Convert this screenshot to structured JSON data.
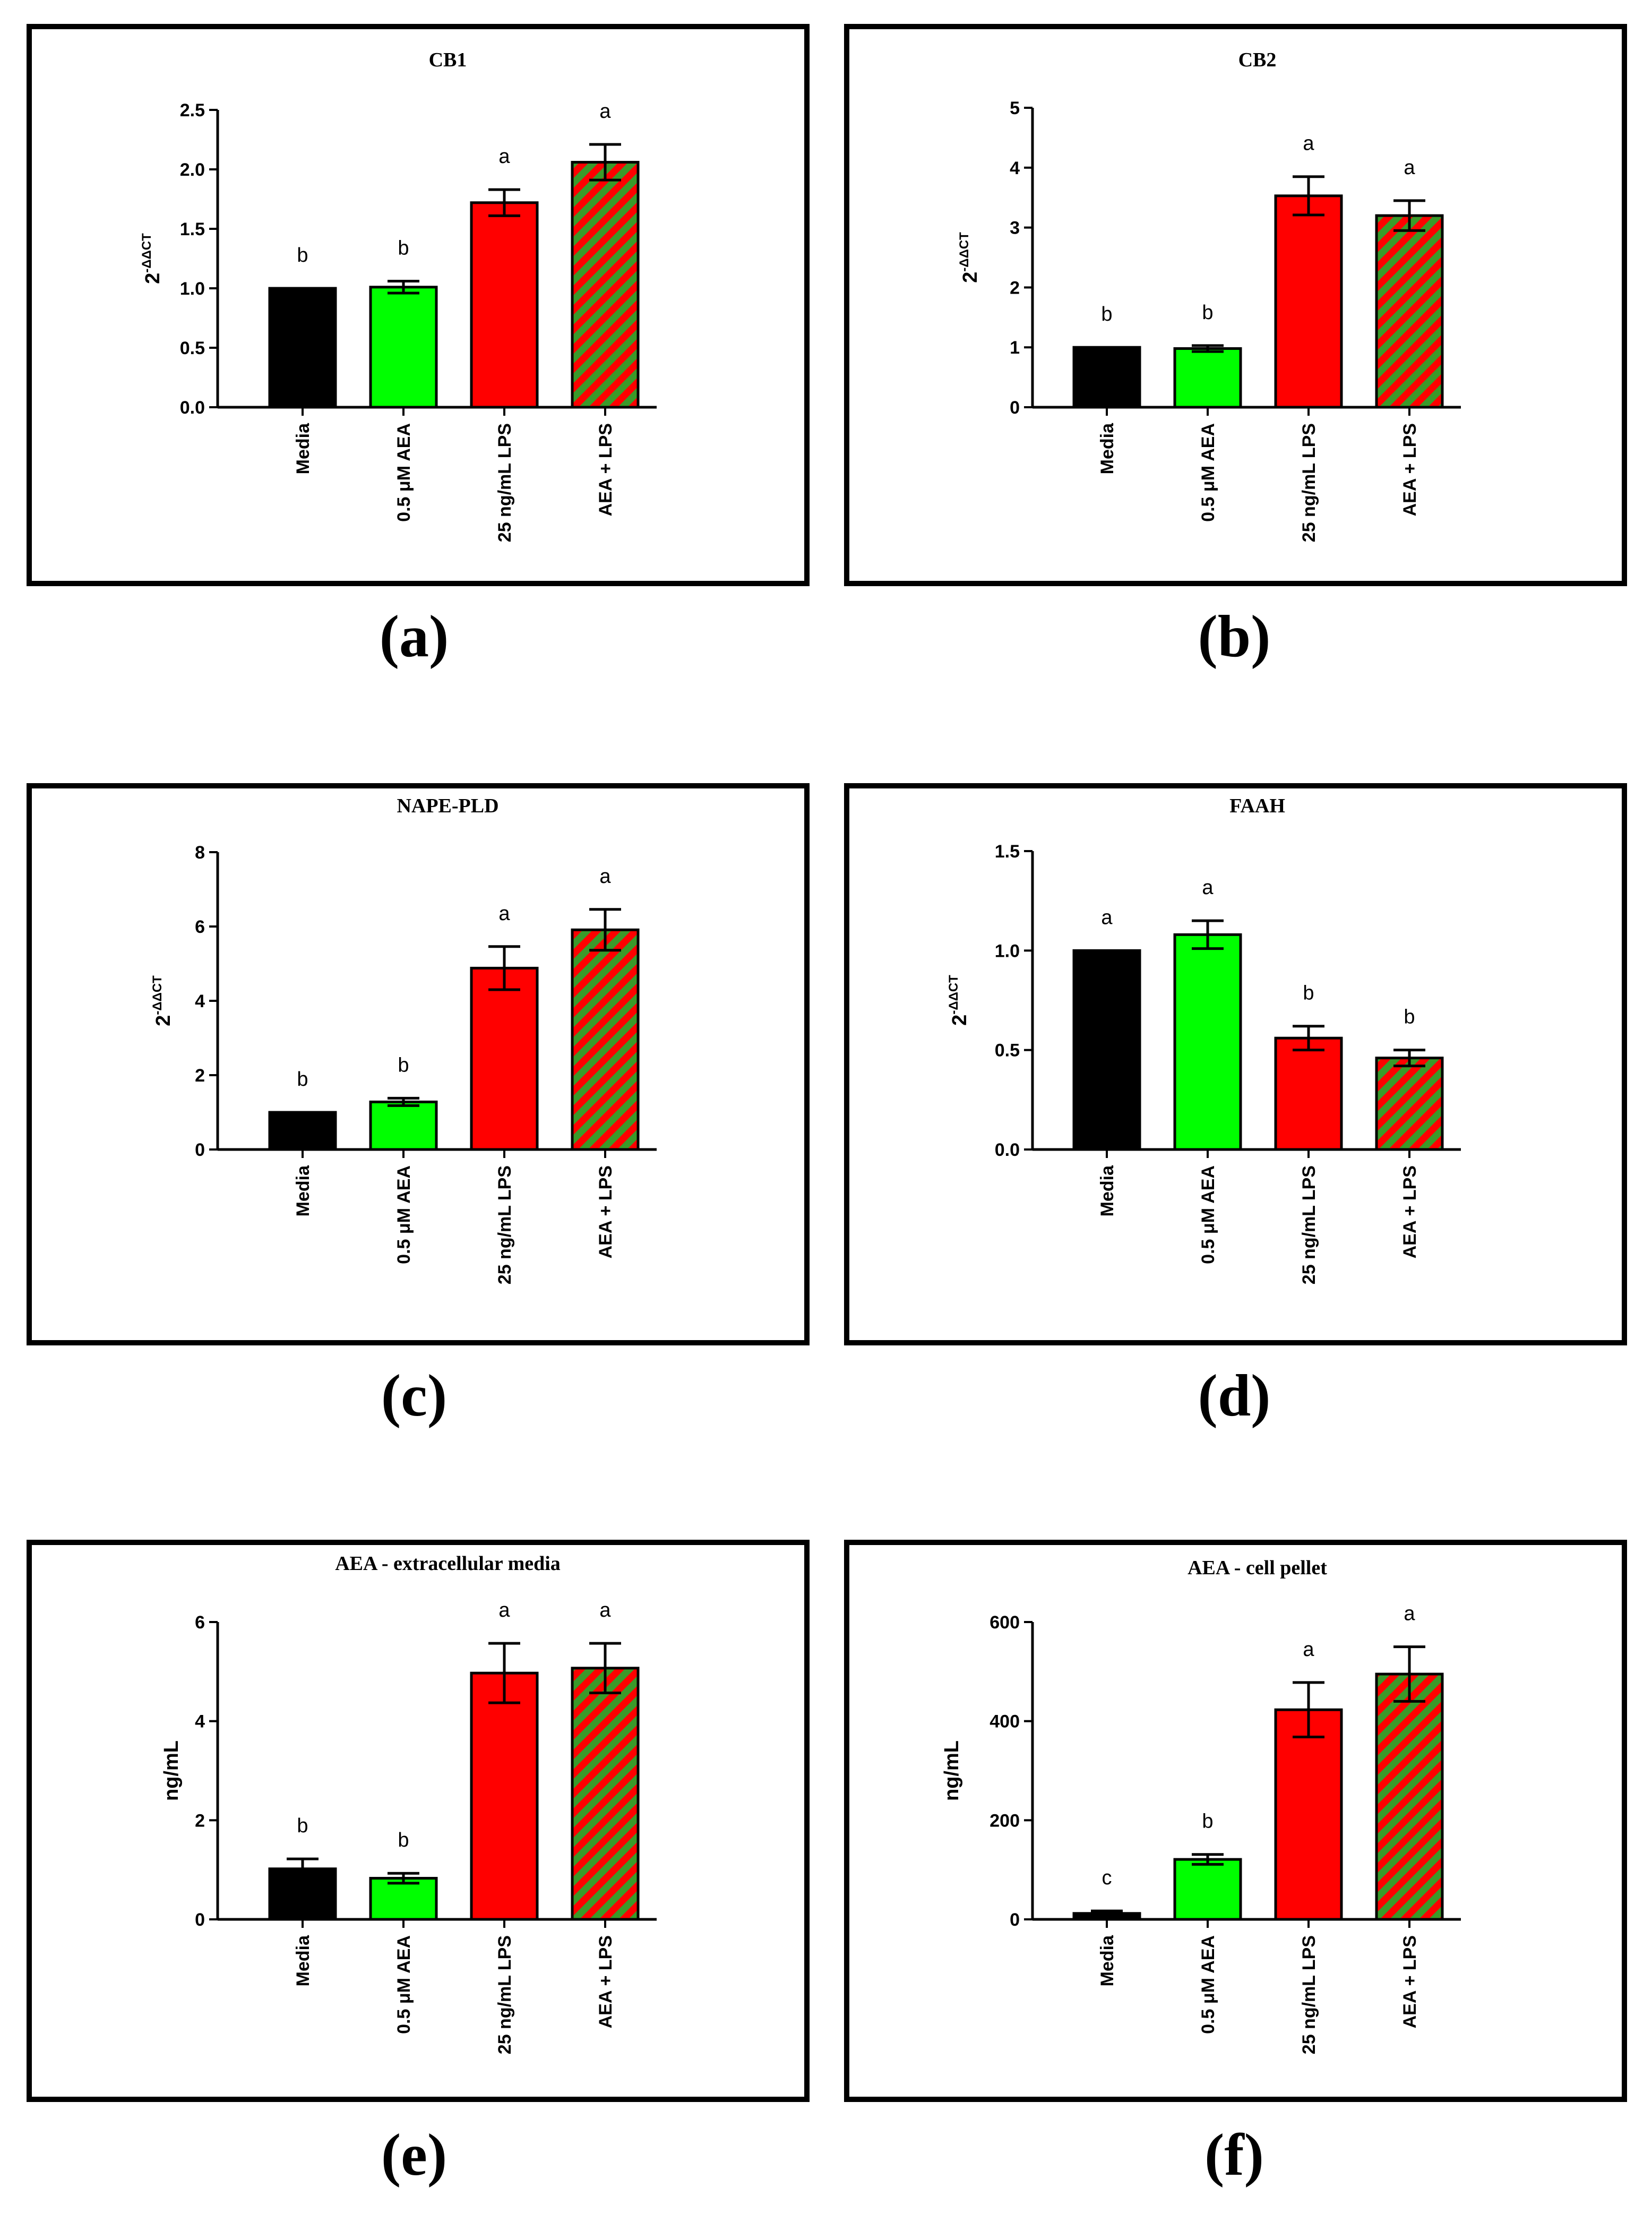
{
  "colors": {
    "media": "#000000",
    "aea": "#00ff00",
    "lps": "#ff0000",
    "combo_stripe_a": "#ff0000",
    "combo_stripe_b": "#3a9a2a"
  },
  "categories": [
    "Media",
    "0.5 μM AEA",
    "25 ng/mL LPS",
    "AEA + LPS"
  ],
  "panel_letters": [
    "(a)",
    "(b)",
    "(c)",
    "(d)",
    "(e)",
    "(f)"
  ],
  "chart_data": [
    {
      "type": "bar",
      "title": "CB1",
      "ylabel": {
        "base": "2",
        "sup": "-ΔΔCT"
      },
      "ylim": [
        0,
        2.5
      ],
      "ticks": [
        "0.0",
        "0.5",
        "1.0",
        "1.5",
        "2.0",
        "2.5"
      ],
      "tick_values": [
        0,
        0.5,
        1.0,
        1.5,
        2.0,
        2.5
      ],
      "values": [
        1.0,
        1.01,
        1.72,
        2.06
      ],
      "errors": [
        0,
        0.05,
        0.11,
        0.15
      ],
      "significance": [
        "b",
        "b",
        "a",
        "a"
      ]
    },
    {
      "type": "bar",
      "title": "CB2",
      "ylabel": {
        "base": "2",
        "sup": "-ΔΔCT"
      },
      "ylim": [
        0,
        5
      ],
      "ticks": [
        "0",
        "1",
        "2",
        "3",
        "4",
        "5"
      ],
      "tick_values": [
        0,
        1,
        2,
        3,
        4,
        5
      ],
      "values": [
        1.0,
        0.98,
        3.53,
        3.2
      ],
      "errors": [
        0,
        0.05,
        0.32,
        0.25
      ],
      "significance": [
        "b",
        "b",
        "a",
        "a"
      ]
    },
    {
      "type": "bar",
      "title": "NAPE-PLD",
      "ylabel": {
        "base": "2",
        "sup": "-ΔΔCT"
      },
      "ylim": [
        0,
        8
      ],
      "ticks": [
        "0",
        "2",
        "4",
        "6",
        "8"
      ],
      "tick_values": [
        0,
        2,
        4,
        6,
        8
      ],
      "values": [
        1.0,
        1.28,
        4.88,
        5.91
      ],
      "errors": [
        0,
        0.1,
        0.58,
        0.55
      ],
      "significance": [
        "b",
        "b",
        "a",
        "a"
      ]
    },
    {
      "type": "bar",
      "title": "FAAH",
      "ylabel": {
        "base": "2",
        "sup": "-ΔΔCT"
      },
      "ylim": [
        0,
        1.5
      ],
      "ticks": [
        "0.0",
        "0.5",
        "1.0",
        "1.5"
      ],
      "tick_values": [
        0,
        0.5,
        1.0,
        1.5
      ],
      "values": [
        1.0,
        1.08,
        0.56,
        0.46
      ],
      "errors": [
        0,
        0.07,
        0.06,
        0.04
      ],
      "significance": [
        "a",
        "a",
        "b",
        "b"
      ]
    },
    {
      "type": "bar",
      "title": "AEA - extracellular media",
      "ylabel": {
        "base": "ng/mL",
        "sup": ""
      },
      "ylim": [
        0,
        6
      ],
      "ticks": [
        "0",
        "2",
        "4",
        "6"
      ],
      "tick_values": [
        0,
        2,
        4,
        6
      ],
      "values": [
        1.02,
        0.83,
        4.97,
        5.07
      ],
      "errors": [
        0.2,
        0.1,
        0.6,
        0.5
      ],
      "significance": [
        "b",
        "b",
        "a",
        "a"
      ]
    },
    {
      "type": "bar",
      "title": "AEA - cell pellet",
      "ylabel": {
        "base": "ng/mL",
        "sup": ""
      },
      "ylim": [
        0,
        600
      ],
      "ticks": [
        "0",
        "200",
        "400",
        "600"
      ],
      "tick_values": [
        0,
        200,
        400,
        600
      ],
      "values": [
        12,
        121,
        423,
        495
      ],
      "errors": [
        5,
        10,
        55,
        55
      ],
      "significance": [
        "c",
        "b",
        "a",
        "a"
      ]
    }
  ]
}
